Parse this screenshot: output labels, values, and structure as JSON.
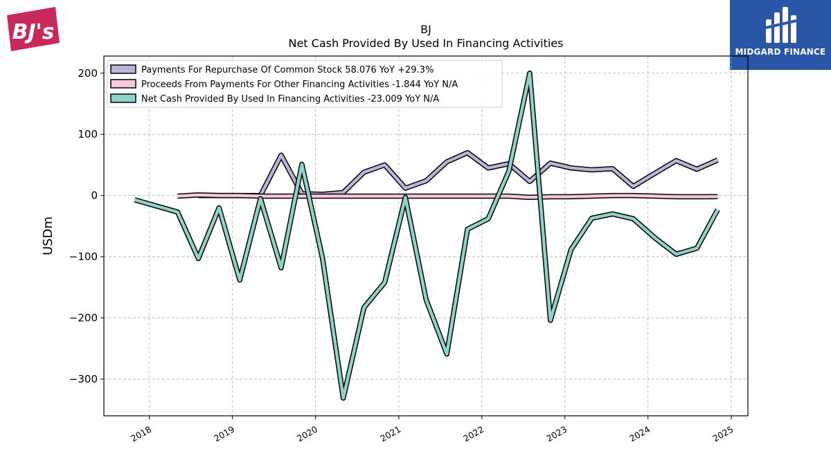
{
  "logos": {
    "left_text": "BJ's",
    "right_text": "MIDGARD FINANCE"
  },
  "chart_data": {
    "type": "line",
    "title": "BJ",
    "subtitle": "Net Cash Provided By Used In Financing Activities",
    "xlabel": "",
    "ylabel": "USDm",
    "xlim": [
      "2017-06-15",
      "2025-03-15"
    ],
    "ylim": [
      -360,
      228
    ],
    "x_ticks": [
      "2018",
      "2019",
      "2020",
      "2021",
      "2022",
      "2023",
      "2024",
      "2025"
    ],
    "y_ticks": [
      200,
      100,
      0,
      -100,
      -200,
      -300
    ],
    "y_tick_labels": [
      "200",
      "100",
      "0",
      "−100",
      "−200",
      "−300"
    ],
    "grid": true,
    "legend_position": "top-left",
    "series": [
      {
        "name": "Payments For Repurchase Of Common Stock",
        "legend_label": "Payments For Repurchase Of Common Stock  58.076 YoY +29.3%",
        "color": "#b9b5d9",
        "x": [
          "2018-08-04",
          "2018-11-03",
          "2019-02-02",
          "2019-05-04",
          "2019-08-03",
          "2019-11-02",
          "2020-02-01",
          "2020-05-02",
          "2020-08-01",
          "2020-10-31",
          "2021-01-30",
          "2021-05-01",
          "2021-07-31",
          "2021-10-30",
          "2022-01-29",
          "2022-04-30",
          "2022-07-30",
          "2022-10-29",
          "2023-01-28",
          "2023-04-29",
          "2023-07-29",
          "2023-10-28",
          "2024-02-03",
          "2024-05-04",
          "2024-08-03",
          "2024-11-02"
        ],
        "values": [
          0,
          0,
          0,
          0,
          66,
          3,
          2,
          5,
          38,
          50,
          12,
          24,
          55,
          70,
          45,
          52,
          23,
          53,
          45,
          42,
          44,
          15,
          37,
          57,
          43,
          58
        ]
      },
      {
        "name": "Proceeds From Payments For Other Financing Activities",
        "legend_label": "Proceeds From Payments For Other Financing Activities  -1.844 YoY N/A",
        "color": "#f7c7dc",
        "x": [
          "2018-05-05",
          "2018-08-04",
          "2018-11-03",
          "2019-02-02",
          "2019-05-04",
          "2019-08-03",
          "2019-11-02",
          "2020-02-01",
          "2020-05-02",
          "2020-08-01",
          "2020-10-31",
          "2021-01-30",
          "2021-05-01",
          "2021-07-31",
          "2021-10-30",
          "2022-01-29",
          "2022-04-30",
          "2022-07-30",
          "2022-10-29",
          "2023-01-28",
          "2023-04-29",
          "2023-07-29",
          "2023-10-28",
          "2024-02-03",
          "2024-05-04",
          "2024-08-03",
          "2024-11-02"
        ],
        "values": [
          -1,
          1,
          0,
          0,
          -1,
          -1,
          -1,
          -1,
          -1,
          -1,
          -1,
          -1,
          -1,
          -1,
          -1,
          -1,
          -1,
          -3,
          -2,
          -2,
          -1,
          0,
          0,
          -1,
          -2,
          -2,
          -1.844
        ]
      },
      {
        "name": "Net Cash Provided By Used In Financing Activities",
        "legend_label": "Net Cash Provided By Used In Financing Activities  -23.009 YoY N/A",
        "color": "#8fd3c8",
        "x": [
          "2017-10-28",
          "2018-05-05",
          "2018-08-04",
          "2018-11-03",
          "2019-02-02",
          "2019-05-04",
          "2019-08-03",
          "2019-11-02",
          "2020-02-01",
          "2020-05-02",
          "2020-08-01",
          "2020-10-31",
          "2021-01-30",
          "2021-05-01",
          "2021-07-31",
          "2021-10-30",
          "2022-01-29",
          "2022-04-30",
          "2022-07-30",
          "2022-10-29",
          "2023-01-28",
          "2023-04-29",
          "2023-07-29",
          "2023-10-28",
          "2024-02-03",
          "2024-05-04",
          "2024-08-03",
          "2024-11-02"
        ],
        "values": [
          -7,
          -27,
          -103,
          -20,
          -138,
          -5,
          -118,
          51,
          -103,
          -331,
          -183,
          -142,
          -3,
          -170,
          -259,
          -55,
          -38,
          40,
          200,
          -204,
          -88,
          -37,
          -30,
          -38,
          -70,
          -96,
          -86,
          -23.009
        ]
      }
    ]
  }
}
